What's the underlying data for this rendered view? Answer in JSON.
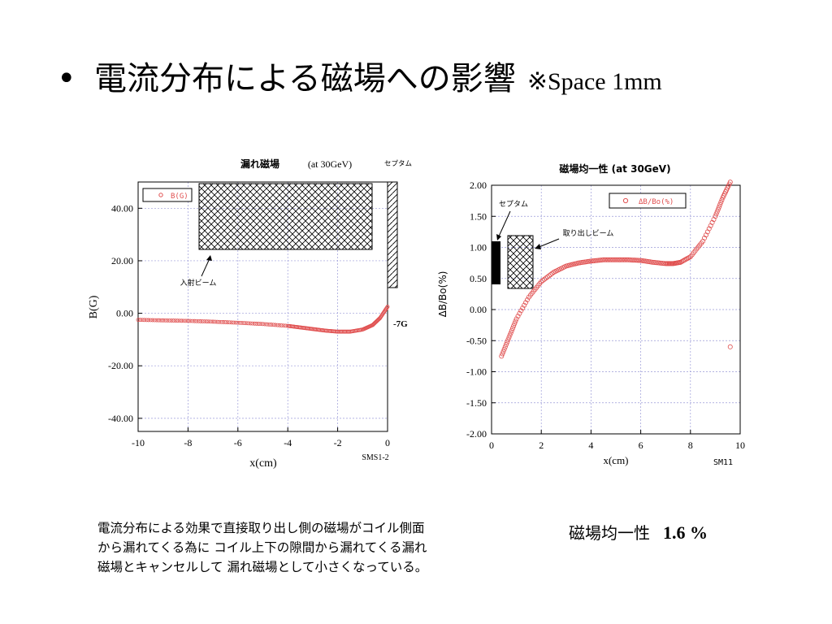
{
  "slide": {
    "bullet": "•",
    "title": "電流分布による磁場への影響",
    "note": "※Space 1mm"
  },
  "caption": {
    "lines": [
      "電流分布による効果で直接取り出し側の磁場がコイル側面",
      "から漏れてくる為に  コイル上下の隙間から漏れてくる漏れ",
      "磁場とキャンセルして  漏れ磁場として小さくなっている。"
    ]
  },
  "uniformity": {
    "label": "磁場均一性",
    "value": "1.6 %"
  },
  "colors": {
    "marker": "#e05050",
    "grid": "#9a9ad8",
    "septum": "#000000"
  },
  "chart_data": [
    {
      "type": "scatter",
      "title": "漏れ磁場",
      "subtitle": "(at 30GeV)",
      "xlabel": "x(cm)",
      "ylabel": "B(G)",
      "xlim": [
        -10,
        0
      ],
      "ylim": [
        -45,
        50
      ],
      "xticks": [
        -10,
        -8,
        -6,
        -4,
        -2,
        0
      ],
      "xtick_labels": [
        "-10",
        "-8",
        "-6",
        "-4",
        "-2",
        "0"
      ],
      "yticks": [
        40,
        20,
        0,
        -20,
        -40
      ],
      "ytick_labels": [
        "40.00",
        "20.00",
        "0.00",
        "-20.00",
        "-40.00"
      ],
      "grid": true,
      "legend": {
        "position": "top-left",
        "entries": [
          "B(G)"
        ]
      },
      "series": [
        {
          "name": "B(G)",
          "x": [
            -10,
            -9,
            -8,
            -7,
            -6,
            -5,
            -4,
            -3.5,
            -3,
            -2.5,
            -2,
            -1.5,
            -1,
            -0.6,
            -0.3,
            0
          ],
          "y": [
            -2.5,
            -2.7,
            -2.9,
            -3.2,
            -3.6,
            -4.1,
            -4.8,
            -5.4,
            -6.0,
            -6.6,
            -7.0,
            -7.0,
            -6.2,
            -4.5,
            -1.8,
            2.5
          ]
        }
      ],
      "annotations": [
        {
          "text": "入射ビーム"
        },
        {
          "text": "セプタム"
        },
        {
          "text": "-7G"
        },
        {
          "text": "SMS1-2"
        }
      ]
    },
    {
      "type": "scatter",
      "title": "磁場均一性 (at 30GeV)",
      "xlabel": "x(cm)",
      "ylabel": "ΔB/Bo(%)",
      "xlim": [
        0,
        10
      ],
      "ylim": [
        -2,
        2
      ],
      "xticks": [
        0,
        2,
        4,
        6,
        8,
        10
      ],
      "xtick_labels": [
        "0",
        "2",
        "4",
        "6",
        "8",
        "10"
      ],
      "yticks": [
        2,
        1.5,
        1,
        0.5,
        0,
        -0.5,
        -1,
        -1.5,
        -2
      ],
      "ytick_labels": [
        "2.00",
        "1.50",
        "1.00",
        "0.50",
        "0.00",
        "-0.50",
        "-1.00",
        "-1.50",
        "-2.00"
      ],
      "grid": true,
      "legend": {
        "position": "top-right",
        "entries": [
          "ΔB/Bo(%)"
        ]
      },
      "series": [
        {
          "name": "ΔB/Bo(%)",
          "x": [
            0.4,
            0.7,
            1.0,
            1.5,
            2.0,
            2.5,
            3.0,
            3.5,
            4.0,
            4.5,
            5.0,
            5.5,
            6.0,
            6.5,
            7.0,
            7.3,
            7.6,
            8.0,
            8.5,
            9.0,
            9.3,
            9.6
          ],
          "y": [
            -0.75,
            -0.45,
            -0.15,
            0.2,
            0.45,
            0.6,
            0.7,
            0.75,
            0.78,
            0.8,
            0.8,
            0.8,
            0.79,
            0.76,
            0.74,
            0.74,
            0.76,
            0.85,
            1.1,
            1.5,
            1.8,
            2.05
          ]
        },
        {
          "name": "",
          "x": [
            9.6
          ],
          "y": [
            -0.6
          ]
        }
      ],
      "annotations": [
        {
          "text": "セプタム"
        },
        {
          "text": "取り出しビーム"
        },
        {
          "text": "SM11"
        }
      ]
    }
  ]
}
